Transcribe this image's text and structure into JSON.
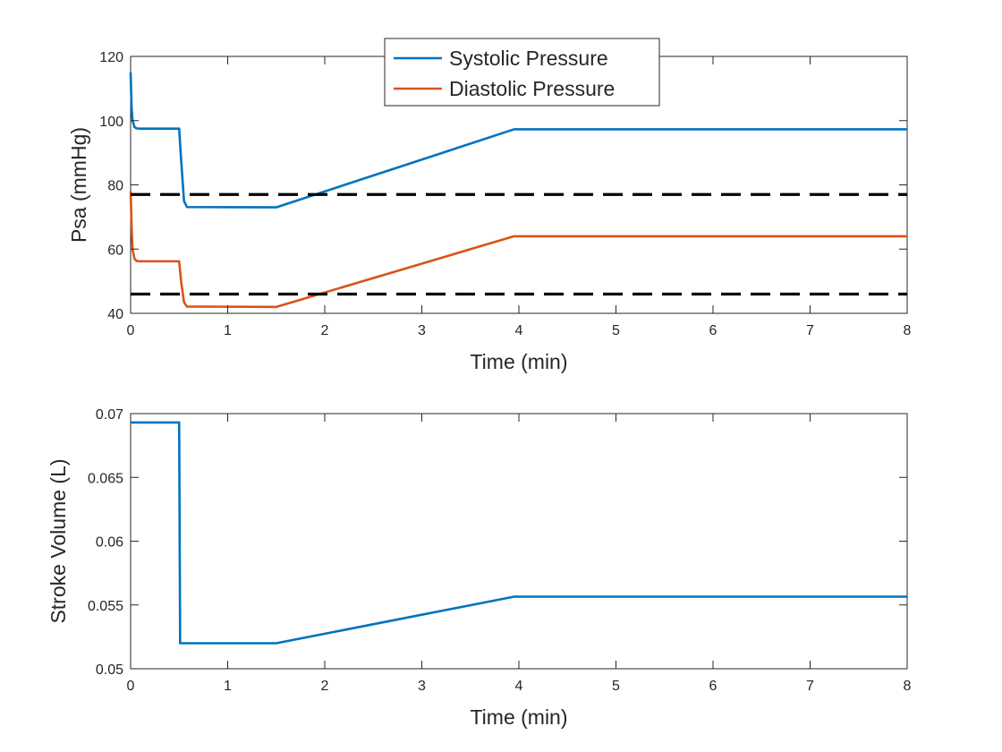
{
  "chart_data": [
    {
      "type": "line",
      "title": "",
      "xlabel": "Time (min)",
      "ylabel": "Psa (mmHg)",
      "xlim": [
        0,
        8
      ],
      "ylim": [
        40,
        120
      ],
      "xticks": [
        0,
        1,
        2,
        3,
        4,
        5,
        6,
        7,
        8
      ],
      "yticks": [
        40,
        60,
        80,
        100,
        120
      ],
      "grid": false,
      "legend": {
        "position": "top-center",
        "entries": [
          "Systolic Pressure",
          "Diastolic Pressure"
        ]
      },
      "series": [
        {
          "name": "Systolic Pressure",
          "color": "#0072bd",
          "x": [
            0,
            0.01,
            0.02,
            0.04,
            0.06,
            0.1,
            0.5,
            0.52,
            0.55,
            0.58,
            1.5,
            3.95,
            8
          ],
          "y": [
            115,
            104,
            100,
            98,
            97.6,
            97.5,
            97.5,
            88,
            75,
            73.1,
            73,
            97.3,
            97.3
          ]
        },
        {
          "name": "Diastolic Pressure",
          "color": "#d95319",
          "x": [
            0,
            0.01,
            0.02,
            0.04,
            0.06,
            0.1,
            0.5,
            0.52,
            0.55,
            0.58,
            1.5,
            3.95,
            8
          ],
          "y": [
            78,
            67,
            60,
            57,
            56.3,
            56.2,
            56.2,
            50,
            43.5,
            42.1,
            42,
            64,
            64
          ]
        },
        {
          "name": "",
          "color": "#000000",
          "dashed": true,
          "x": [
            0,
            8
          ],
          "y": [
            77,
            77
          ]
        },
        {
          "name": "",
          "color": "#000000",
          "dashed": true,
          "x": [
            0,
            8
          ],
          "y": [
            46,
            46
          ]
        }
      ]
    },
    {
      "type": "line",
      "title": "",
      "xlabel": "Time (min)",
      "ylabel": "Stroke Volume (L)",
      "xlim": [
        0,
        8
      ],
      "ylim": [
        0.05,
        0.07
      ],
      "xticks": [
        0,
        1,
        2,
        3,
        4,
        5,
        6,
        7,
        8
      ],
      "yticks": [
        0.05,
        0.055,
        0.06,
        0.065,
        0.07
      ],
      "ytick_labels": [
        "0.05",
        "0.055",
        "0.06",
        "0.065",
        "0.07"
      ],
      "grid": false,
      "series": [
        {
          "name": "",
          "color": "#0072bd",
          "x": [
            0,
            0.5,
            0.51,
            1.5,
            3.95,
            8
          ],
          "y": [
            0.0693,
            0.0693,
            0.052,
            0.052,
            0.05565,
            0.05565
          ]
        }
      ]
    }
  ]
}
